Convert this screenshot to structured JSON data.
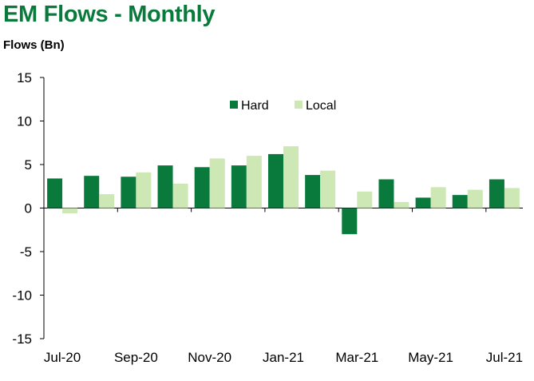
{
  "title": "EM Flows - Monthly",
  "chart_data": {
    "type": "bar",
    "title": "EM Flows - Monthly",
    "xlabel": "",
    "ylabel": "Flows (Bn)",
    "ylim": [
      -15,
      15
    ],
    "yticks": [
      15,
      10,
      5,
      0,
      -5,
      -10,
      -15
    ],
    "categories": [
      "Jul-20",
      "Aug-20",
      "Sep-20",
      "Oct-20",
      "Nov-20",
      "Dec-20",
      "Jan-21",
      "Feb-21",
      "Mar-21",
      "Apr-21",
      "May-21",
      "Jun-21",
      "Jul-21"
    ],
    "xtick_labels": [
      "Jul-20",
      "",
      "Sep-20",
      "",
      "Nov-20",
      "",
      "Jan-21",
      "",
      "Mar-21",
      "",
      "May-21",
      "",
      "Jul-21"
    ],
    "series": [
      {
        "name": "Hard",
        "color": "#0a7a3c",
        "values": [
          3.4,
          3.7,
          3.6,
          4.9,
          4.7,
          4.9,
          6.2,
          3.8,
          -3.0,
          3.3,
          1.2,
          1.5,
          3.3
        ]
      },
      {
        "name": "Local",
        "color": "#cde8b4",
        "values": [
          -0.6,
          1.6,
          4.1,
          2.8,
          5.7,
          6.0,
          7.1,
          4.3,
          1.9,
          0.7,
          2.4,
          2.1,
          2.3
        ]
      }
    ],
    "legend_position": "top-center",
    "grid": false
  }
}
